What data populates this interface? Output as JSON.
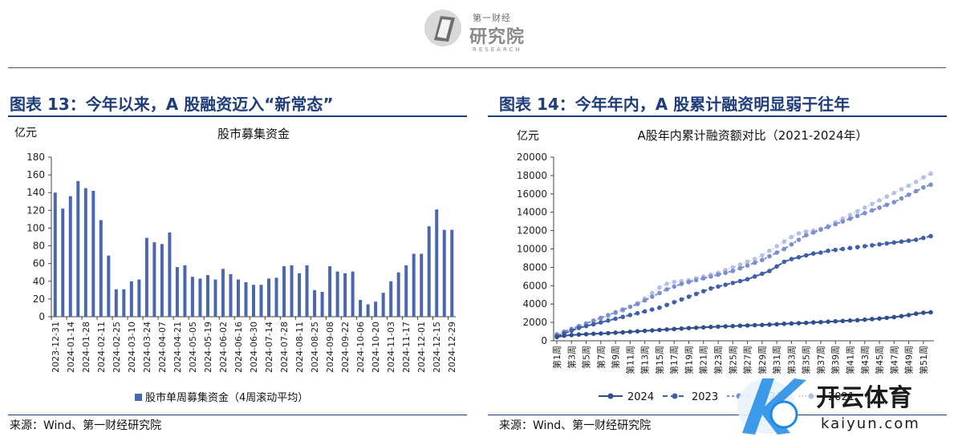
{
  "logo": {
    "small": "第一财经",
    "big": "研究院",
    "en": "RESEARCH"
  },
  "panels": [
    {
      "title": "图表 13：今年以来，A 股融资迈入“新常态”",
      "source": "来源：Wind、第一财经研究院"
    },
    {
      "title": "图表 14：今年年内，A 股累计融资明显弱于往年",
      "source": "来源：Wind、第一财经研究院"
    }
  ],
  "watermark": {
    "name": "开云体育",
    "url": "kaiyun.com"
  },
  "chart_data": [
    {
      "type": "bar",
      "title": "股市募集资金",
      "ylabel": "亿元",
      "ylim": [
        0,
        180
      ],
      "yticks": [
        0,
        20,
        40,
        60,
        80,
        100,
        120,
        140,
        160,
        180
      ],
      "grid": false,
      "legend_position": "bottom",
      "tick_labels": [
        "2023-12-31",
        "2024-01-14",
        "2024-01-28",
        "2024-02-11",
        "2024-02-25",
        "2024-03-10",
        "2024-03-24",
        "2024-04-07",
        "2024-04-21",
        "2024-05-05",
        "2024-05-19",
        "2024-06-02",
        "2024-06-16",
        "2024-06-30",
        "2024-07-14",
        "2024-07-28",
        "2024-08-11",
        "2024-08-25",
        "2024-09-08",
        "2024-09-22",
        "2024-10-06",
        "2024-10-20",
        "2024-11-03",
        "2024-11-17",
        "2024-12-01",
        "2024-12-15",
        "2024-12-29"
      ],
      "series": [
        {
          "name": "股市单周募集资金（4周滚动平均）",
          "color": "#4a66ad",
          "values": [
            140,
            122,
            136,
            153,
            145,
            142,
            109,
            69,
            31,
            31,
            40,
            42,
            89,
            84,
            82,
            95,
            56,
            58,
            45,
            43,
            47,
            42,
            54,
            48,
            42,
            39,
            36,
            36,
            43,
            44,
            57,
            58,
            49,
            58,
            30,
            28,
            57,
            51,
            49,
            51,
            19,
            14,
            17,
            27,
            40,
            50,
            58,
            71,
            71,
            102,
            121,
            98,
            98
          ]
        }
      ]
    },
    {
      "type": "line",
      "title": "A股年内累计融资额对比（2021-2024年）",
      "ylabel": "亿元",
      "ylim": [
        0,
        20000
      ],
      "yticks": [
        0,
        2000,
        4000,
        6000,
        8000,
        10000,
        12000,
        14000,
        16000,
        18000,
        20000
      ],
      "grid": false,
      "legend_position": "bottom",
      "x_labels": [
        "第1周",
        "第3周",
        "第5周",
        "第7周",
        "第9周",
        "第11周",
        "第13周",
        "第15周",
        "第17周",
        "第19周",
        "第21周",
        "第23周",
        "第25周",
        "第27周",
        "第29周",
        "第31周",
        "第33周",
        "第35周",
        "第37周",
        "第39周",
        "第41周",
        "第43周",
        "第45周",
        "第47周",
        "第49周",
        "第51周"
      ],
      "series": [
        {
          "name": "2024",
          "color": "#2f4f8f",
          "values": [
            400,
            560,
            620,
            680,
            720,
            760,
            790,
            830,
            880,
            920,
            980,
            1030,
            1080,
            1130,
            1180,
            1230,
            1280,
            1330,
            1380,
            1420,
            1460,
            1500,
            1540,
            1570,
            1600,
            1640,
            1670,
            1700,
            1720,
            1760,
            1800,
            1850,
            1880,
            1920,
            1950,
            2000,
            2030,
            2080,
            2120,
            2160,
            2200,
            2240,
            2300,
            2360,
            2420,
            2500,
            2580,
            2680,
            2800,
            2950,
            3050,
            3100
          ]
        },
        {
          "name": "2023",
          "color": "#3f5fa8",
          "values": [
            500,
            800,
            1100,
            1400,
            1600,
            1800,
            2000,
            2200,
            2400,
            2600,
            2800,
            3000,
            3200,
            3400,
            3600,
            3900,
            4200,
            4500,
            4800,
            5100,
            5400,
            5700,
            5900,
            6100,
            6300,
            6500,
            6700,
            7000,
            7300,
            7600,
            8100,
            8600,
            8900,
            9100,
            9300,
            9500,
            9600,
            9800,
            9900,
            10000,
            10100,
            10200,
            10300,
            10400,
            10500,
            10600,
            10700,
            10800,
            10900,
            11000,
            11200,
            11400
          ]
        },
        {
          "name": "2022",
          "color": "#7b8ed0",
          "values": [
            700,
            1000,
            1300,
            1600,
            1900,
            2200,
            2500,
            2800,
            3100,
            3400,
            3700,
            4000,
            4400,
            4800,
            5200,
            5600,
            5900,
            6200,
            6400,
            6600,
            6800,
            7000,
            7200,
            7400,
            7600,
            7900,
            8200,
            8500,
            8800,
            9200,
            9600,
            10000,
            10500,
            11000,
            11500,
            11800,
            12100,
            12400,
            12700,
            13000,
            13300,
            13600,
            13900,
            14200,
            14500,
            14800,
            15100,
            15500,
            15900,
            16300,
            16700,
            17000
          ]
        },
        {
          "name": "2021",
          "color": "#b5c0e6",
          "values": [
            600,
            900,
            1200,
            1500,
            1800,
            2100,
            2400,
            2700,
            3000,
            3300,
            3700,
            4100,
            4600,
            5200,
            5800,
            6200,
            6400,
            6500,
            6600,
            6800,
            7000,
            7200,
            7400,
            7700,
            8000,
            8300,
            8600,
            8900,
            9300,
            9800,
            10300,
            10800,
            11300,
            11700,
            11900,
            12000,
            12200,
            12500,
            12900,
            13300,
            13700,
            14100,
            14500,
            14900,
            15300,
            15700,
            16100,
            16500,
            16900,
            17300,
            17800,
            18200
          ]
        }
      ]
    }
  ]
}
